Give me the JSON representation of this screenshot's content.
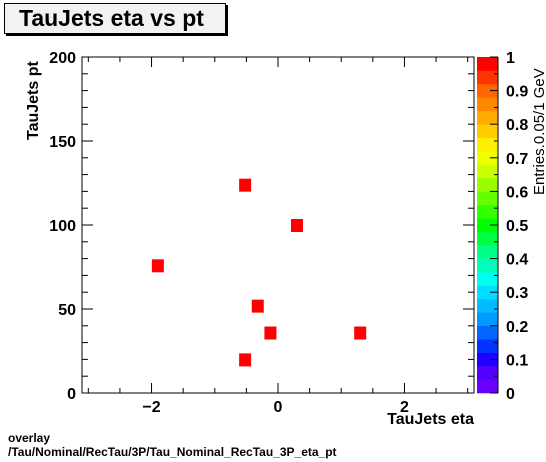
{
  "chart_data": {
    "type": "scatter",
    "title": "TauJets eta vs pt",
    "xlabel": "TauJets eta",
    "ylabel": "TauJets pt",
    "zlabel": "Entries.0.05/1 GeV",
    "xlim": [
      -3.1,
      3.1
    ],
    "ylim": [
      0,
      200
    ],
    "zlim": [
      0,
      1
    ],
    "x_ticks": [
      -2,
      0,
      2
    ],
    "x_tick_labels": [
      "−2",
      "0",
      "2"
    ],
    "y_ticks": [
      0,
      50,
      100,
      150,
      200
    ],
    "z_ticks": [
      0,
      0.1,
      0.2,
      0.3,
      0.4,
      0.5,
      0.6,
      0.7,
      0.8,
      0.9,
      1
    ],
    "grid": false,
    "points": [
      {
        "x": -0.52,
        "y": 124,
        "z": 1
      },
      {
        "x": 0.3,
        "y": 100,
        "z": 1
      },
      {
        "x": -1.9,
        "y": 76,
        "z": 1
      },
      {
        "x": -0.32,
        "y": 52,
        "z": 1
      },
      {
        "x": -0.12,
        "y": 36,
        "z": 1
      },
      {
        "x": 1.3,
        "y": 36,
        "z": 1
      },
      {
        "x": -0.52,
        "y": 20,
        "z": 1
      }
    ],
    "palette": [
      "#6a00ff",
      "#5400ff",
      "#2000ff",
      "#0033ff",
      "#0066ff",
      "#0099ff",
      "#00bbff",
      "#00ddff",
      "#00ffee",
      "#00ffbb",
      "#00ff88",
      "#00ff44",
      "#00ff00",
      "#33ff00",
      "#66ff00",
      "#99ff00",
      "#ccff00",
      "#eeff00",
      "#ffee00",
      "#ffcc00",
      "#ffaa00",
      "#ff8800",
      "#ff6600",
      "#ff3300",
      "#ff0000"
    ]
  },
  "footer": {
    "line1": "overlay",
    "line2": "/Tau/Nominal/RecTau/3P/Tau_Nominal_RecTau_3P_eta_pt"
  }
}
